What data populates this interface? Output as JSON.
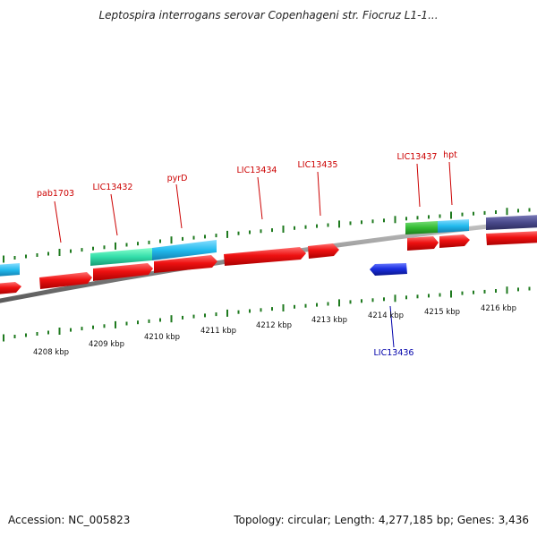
{
  "title": "Leptospira interrogans serovar Copenhageni str. Fiocruz L1-1...",
  "footer": {
    "accession": "Accession: NC_005823",
    "summary": "Topology: circular; Length: 4,277,185 bp; Genes: 3,436"
  },
  "colors": {
    "forward_gene": "#ee1111",
    "reverse_gene": "#1a2fe0",
    "backbone": "#8a8a8a",
    "tick": "#1f7a1f",
    "label_forward": "#cc0000",
    "label_reverse": "#0000aa",
    "cog_teal": "#33ddaa",
    "cog_cyan": "#22bbee",
    "cog_green": "#33bb33",
    "cog_purple": "#4a4a8c"
  },
  "scale_labels": [
    "4208 kbp",
    "4209 kbp",
    "4210 kbp",
    "4211 kbp",
    "4212 kbp",
    "4213 kbp",
    "4214 kbp",
    "4215 kbp",
    "4216 kbp"
  ],
  "gene_labels": [
    {
      "text": "pab1703",
      "strand": "forward"
    },
    {
      "text": "LIC13432",
      "strand": "forward"
    },
    {
      "text": "pyrD",
      "strand": "forward"
    },
    {
      "text": "LIC13434",
      "strand": "forward"
    },
    {
      "text": "LIC13435",
      "strand": "forward"
    },
    {
      "text": "LIC13437",
      "strand": "forward"
    },
    {
      "text": "hpt",
      "strand": "forward"
    },
    {
      "text": "LIC13436",
      "strand": "reverse"
    }
  ]
}
